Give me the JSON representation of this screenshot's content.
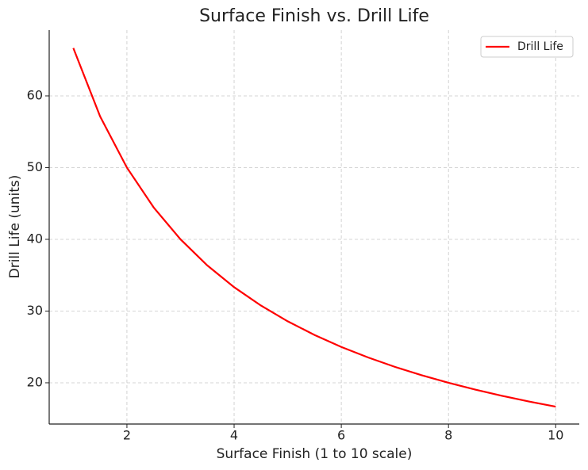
{
  "chart_data": {
    "type": "line",
    "title": "Surface Finish vs. Drill Life",
    "x_label": "Surface Finish (1 to 10 scale)",
    "y_label": "Drill Life (units)",
    "x": [
      1,
      1.5,
      2,
      2.5,
      3,
      3.5,
      4,
      4.5,
      5,
      5.5,
      6,
      6.5,
      7,
      7.5,
      8,
      8.5,
      9,
      9.5,
      10
    ],
    "series": [
      {
        "name": "Drill Life",
        "color": "#ff0000",
        "values": [
          66.67,
          57.14,
          50,
          44.44,
          40,
          36.36,
          33.33,
          30.77,
          28.57,
          26.67,
          25,
          23.53,
          22.22,
          21.05,
          20,
          19.05,
          18.18,
          17.39,
          16.67
        ]
      }
    ],
    "xlim": [
      0.55,
      10.44
    ],
    "ylim": [
      14.25,
      69.17
    ],
    "xticks": [
      2,
      4,
      6,
      8,
      10
    ],
    "yticks": [
      20,
      30,
      40,
      50,
      60
    ],
    "grid": true,
    "legend": "upper right"
  }
}
